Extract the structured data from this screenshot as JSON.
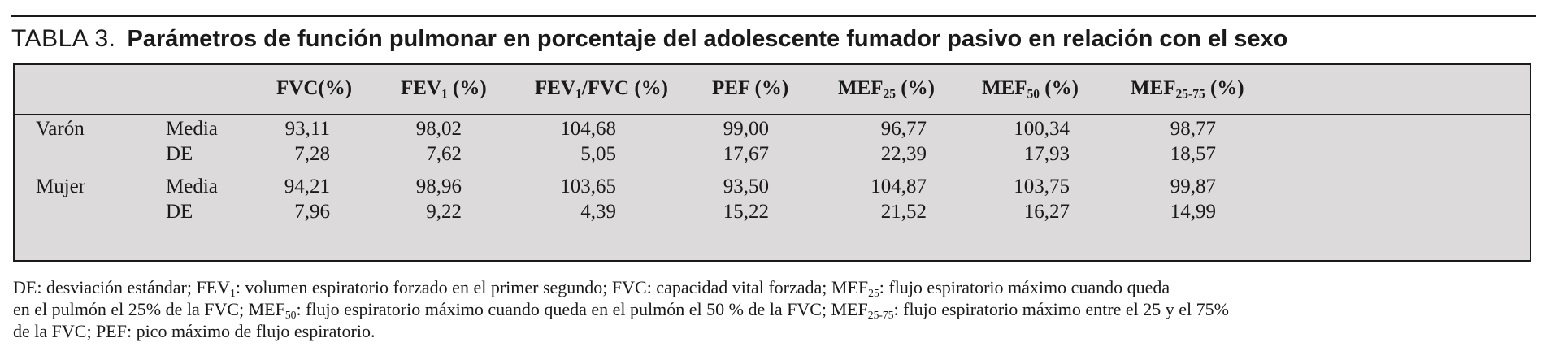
{
  "table": {
    "label": "TABLA 3.",
    "title": "Parámetros de función pulmonar en porcentaje del adolescente fumador pasivo en relación con el sexo",
    "columns": [
      {
        "main": "FVC(%)",
        "sub": "",
        "tail": ""
      },
      {
        "main": "FEV",
        "sub": "1",
        "tail": " (%)"
      },
      {
        "main": "FEV",
        "sub": "1",
        "tail": "/FVC (%)"
      },
      {
        "main": "PEF (%)",
        "sub": "",
        "tail": ""
      },
      {
        "main": "MEF",
        "sub": "25",
        "tail": " (%)"
      },
      {
        "main": "MEF",
        "sub": "50",
        "tail": "  (%)"
      },
      {
        "main": "MEF",
        "sub": "25-75",
        "tail": " (%)"
      }
    ],
    "groups": [
      {
        "sex": "Varón",
        "rows": [
          {
            "stat": "Media",
            "values": [
              "93,11",
              "98,02",
              "104,68",
              "99,00",
              "96,77",
              "100,34",
              "98,77"
            ]
          },
          {
            "stat": "DE",
            "values": [
              "7,28",
              "7,62",
              "5,05",
              "17,67",
              "22,39",
              "17,93",
              "18,57"
            ]
          }
        ]
      },
      {
        "sex": "Mujer",
        "rows": [
          {
            "stat": "Media",
            "values": [
              "94,21",
              "98,96",
              "103,65",
              "93,50",
              "104,87",
              "103,75",
              "99,87"
            ]
          },
          {
            "stat": "DE",
            "values": [
              "7,96",
              "9,22",
              "4,39",
              "15,22",
              "21,52",
              "16,27",
              "14,99"
            ]
          }
        ]
      }
    ]
  },
  "footnote": {
    "line1": {
      "a": "DE: desviación estándar; FEV",
      "b": "1",
      "c": ": volumen espiratorio forzado en el primer segundo; FVC: capacidad vital forzada; MEF",
      "d": "25",
      "e": ": flujo espiratorio máximo cuando queda"
    },
    "line2": {
      "a": "en el pulmón el 25% de la FVC; MEF",
      "b": "50",
      "c": ": flujo espiratorio máximo cuando queda en el pulmón el 50 % de la FVC; MEF",
      "d": "25-75",
      "e": ": flujo espiratorio máximo entre el 25 y el 75%"
    },
    "line3": "de la FVC; PEF: pico máximo de flujo espiratorio."
  }
}
